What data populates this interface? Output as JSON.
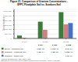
{
  "chart_data": {
    "type": "bar",
    "title": "Figure 21. Comparison of Uranium Concentrations -",
    "subtitle": "EFPC Floodplain Soil vs. Scarboro Soil",
    "categories": [
      "S-004",
      "S-006",
      "S-008"
    ],
    "series": [
      {
        "name": "EFPC - Floodplain soil",
        "color": "#3a7d3a",
        "values": [
          320000,
          1850000,
          2900000
        ],
        "value_labels": [
          "3.2E+05",
          "1.85E+06",
          "2.9E+06"
        ]
      },
      {
        "name": "Scarboro - residential soil",
        "color": "#d08080",
        "values": [
          80000,
          950000,
          1550000
        ],
        "value_labels": [
          "8.0E+04",
          "9.5E+05",
          "1.55E+06"
        ]
      },
      {
        "name": "Scarboro - garden soil",
        "color": "#4472c4",
        "values": [
          0,
          0,
          1700000
        ],
        "value_labels": [
          null,
          null,
          "1.7E+06"
        ]
      }
    ],
    "y_label": "Concentration",
    "ylim": [
      0,
      3200000
    ],
    "yticks": [
      0,
      {
        "value": 500000,
        "label": "500,000"
      },
      {
        "value": 1000000,
        "label": "1,000,000"
      },
      {
        "value": 1500000,
        "label": "1,500,000"
      },
      {
        "value": 2000000,
        "label": "2,000,000"
      },
      {
        "value": 2500000,
        "label": "2,500,000"
      },
      {
        "value": 3000000,
        "label": "3,000,000"
      }
    ],
    "grid": true,
    "annotations": [
      "* Sources: Something et al., 2001, 2003, & 1999",
      "NOTE: Data are in units of pCi/g. Values for Scarboro Residential soils are from depths 0 - 15cm (0-6\") and garden"
    ]
  }
}
